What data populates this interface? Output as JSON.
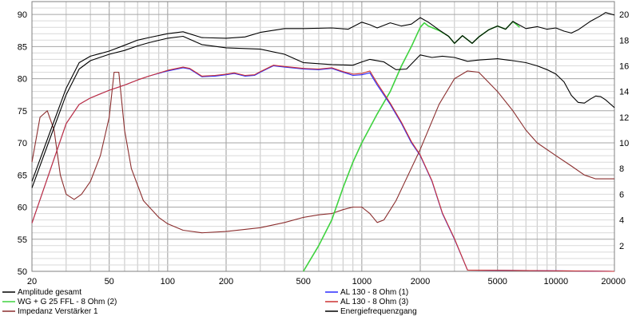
{
  "chart_data": {
    "type": "line",
    "title": "",
    "xlabel": "",
    "ylabel": "",
    "x_scale": "log",
    "xlim": [
      20,
      20000
    ],
    "ylim": [
      50,
      92
    ],
    "y2lim": [
      0,
      21
    ],
    "grid": true,
    "x_ticks": [
      "20",
      "50",
      "100",
      "200",
      "500",
      "1000",
      "2000",
      "5000",
      "10000",
      "20000"
    ],
    "y_ticks": [
      "50",
      "55",
      "60",
      "65",
      "70",
      "75",
      "80",
      "85",
      "90"
    ],
    "y2_ticks": [
      "2",
      "4",
      "6",
      "8",
      "10",
      "12",
      "14",
      "16",
      "18",
      "20"
    ],
    "legend_position": "bottom",
    "series": [
      {
        "name": "Amplitude gesamt",
        "color": "#000000",
        "axis": "left",
        "points": [
          [
            20,
            64
          ],
          [
            25,
            72
          ],
          [
            30,
            78.5
          ],
          [
            35,
            82.5
          ],
          [
            40,
            83.5
          ],
          [
            50,
            84.3
          ],
          [
            60,
            85.2
          ],
          [
            70,
            86
          ],
          [
            80,
            86.4
          ],
          [
            100,
            87
          ],
          [
            120,
            87.3
          ],
          [
            150,
            86.4
          ],
          [
            200,
            86.3
          ],
          [
            250,
            86.5
          ],
          [
            300,
            87.2
          ],
          [
            400,
            87.8
          ],
          [
            500,
            87.8
          ],
          [
            700,
            87.9
          ],
          [
            850,
            87.7
          ],
          [
            1000,
            88.8
          ],
          [
            1100,
            88.4
          ],
          [
            1200,
            87.9
          ],
          [
            1400,
            88.7
          ],
          [
            1600,
            88.2
          ],
          [
            1800,
            88.5
          ],
          [
            2000,
            89.5
          ],
          [
            2200,
            88.8
          ],
          [
            2500,
            87.6
          ],
          [
            2800,
            86.6
          ],
          [
            3000,
            85.5
          ],
          [
            3300,
            86.7
          ],
          [
            3700,
            85.5
          ],
          [
            4000,
            86.5
          ],
          [
            4500,
            87.6
          ],
          [
            5000,
            88.2
          ],
          [
            5500,
            87.7
          ],
          [
            6000,
            88.9
          ],
          [
            7000,
            87.8
          ],
          [
            8000,
            88.1
          ],
          [
            9000,
            87.7
          ],
          [
            10000,
            87.9
          ],
          [
            11000,
            87.4
          ],
          [
            12000,
            87.1
          ],
          [
            13000,
            87.6
          ],
          [
            15000,
            88.9
          ],
          [
            17000,
            89.8
          ],
          [
            18000,
            90.3
          ],
          [
            20000,
            89.9
          ]
        ]
      },
      {
        "name": "WG + G 25 FFL - 8 Ohm (2)",
        "color": "#3fd23f",
        "axis": "left",
        "points": [
          [
            500,
            50
          ],
          [
            600,
            54
          ],
          [
            700,
            58
          ],
          [
            800,
            63
          ],
          [
            900,
            67
          ],
          [
            1000,
            70
          ],
          [
            1200,
            74.5
          ],
          [
            1400,
            78
          ],
          [
            1600,
            82
          ],
          [
            1800,
            85
          ],
          [
            2000,
            88
          ],
          [
            2100,
            88.7
          ],
          [
            2200,
            88.2
          ],
          [
            2500,
            87.5
          ],
          [
            2800,
            86.6
          ],
          [
            3000,
            85.5
          ],
          [
            3300,
            86.7
          ],
          [
            3700,
            85.5
          ],
          [
            4000,
            86.5
          ],
          [
            4500,
            87.6
          ],
          [
            5000,
            88.2
          ],
          [
            5500,
            87.7
          ],
          [
            6000,
            88.9
          ],
          [
            6500,
            88
          ]
        ]
      },
      {
        "name": "Impedanz Verstärker 1",
        "color": "#8b2e2e",
        "axis": "right",
        "points": [
          [
            20,
            8.5
          ],
          [
            22,
            12
          ],
          [
            24,
            12.5
          ],
          [
            26,
            11
          ],
          [
            28,
            7.5
          ],
          [
            30,
            6
          ],
          [
            33,
            5.6
          ],
          [
            36,
            6
          ],
          [
            40,
            7
          ],
          [
            45,
            9
          ],
          [
            50,
            12
          ],
          [
            53,
            15.5
          ],
          [
            56,
            15.5
          ],
          [
            60,
            11
          ],
          [
            65,
            8
          ],
          [
            75,
            5.5
          ],
          [
            90,
            4.2
          ],
          [
            100,
            3.7
          ],
          [
            120,
            3.2
          ],
          [
            150,
            3
          ],
          [
            200,
            3.1
          ],
          [
            300,
            3.4
          ],
          [
            400,
            3.8
          ],
          [
            500,
            4.2
          ],
          [
            600,
            4.4
          ],
          [
            700,
            4.5
          ],
          [
            800,
            4.8
          ],
          [
            900,
            5
          ],
          [
            1000,
            5
          ],
          [
            1100,
            4.5
          ],
          [
            1200,
            3.8
          ],
          [
            1300,
            4
          ],
          [
            1500,
            5.5
          ],
          [
            2000,
            9.5
          ],
          [
            2500,
            13
          ],
          [
            3000,
            15
          ],
          [
            3500,
            15.6
          ],
          [
            4000,
            15.5
          ],
          [
            5000,
            14
          ],
          [
            6000,
            12.5
          ],
          [
            7000,
            11
          ],
          [
            8000,
            10
          ],
          [
            10000,
            9
          ],
          [
            12000,
            8.2
          ],
          [
            14000,
            7.5
          ],
          [
            16000,
            7.2
          ],
          [
            20000,
            7.2
          ]
        ]
      },
      {
        "name": "AL 130 - 8 Ohm (1)",
        "color": "#2a2aff",
        "axis": "left",
        "points": [
          [
            20,
            57.5
          ],
          [
            25,
            66
          ],
          [
            30,
            73
          ],
          [
            35,
            76
          ],
          [
            40,
            77
          ],
          [
            50,
            78.2
          ],
          [
            60,
            79
          ],
          [
            70,
            79.8
          ],
          [
            80,
            80.4
          ],
          [
            100,
            81.2
          ],
          [
            120,
            81.7
          ],
          [
            130,
            81.5
          ],
          [
            150,
            80.3
          ],
          [
            175,
            80.4
          ],
          [
            200,
            80.6
          ],
          [
            220,
            80.8
          ],
          [
            250,
            80.4
          ],
          [
            280,
            80.5
          ],
          [
            300,
            81
          ],
          [
            350,
            82
          ],
          [
            400,
            81.8
          ],
          [
            500,
            81.5
          ],
          [
            600,
            81.4
          ],
          [
            700,
            81.6
          ],
          [
            800,
            81
          ],
          [
            900,
            80.5
          ],
          [
            1000,
            80.6
          ],
          [
            1100,
            80.9
          ],
          [
            1200,
            79
          ],
          [
            1400,
            76
          ],
          [
            1600,
            73
          ],
          [
            1800,
            70
          ],
          [
            2000,
            68
          ],
          [
            2300,
            64
          ],
          [
            2600,
            59
          ],
          [
            3000,
            55
          ],
          [
            3500,
            50.2
          ],
          [
            20000,
            50
          ]
        ]
      },
      {
        "name": "AL 130 - 8 Ohm (3)",
        "color": "#cc3333",
        "axis": "left",
        "points": [
          [
            20,
            57.5
          ],
          [
            25,
            66
          ],
          [
            30,
            73
          ],
          [
            35,
            76
          ],
          [
            40,
            77
          ],
          [
            50,
            78.2
          ],
          [
            60,
            79
          ],
          [
            70,
            79.8
          ],
          [
            80,
            80.4
          ],
          [
            100,
            81.3
          ],
          [
            120,
            81.8
          ],
          [
            130,
            81.6
          ],
          [
            150,
            80.4
          ],
          [
            175,
            80.5
          ],
          [
            200,
            80.7
          ],
          [
            220,
            80.9
          ],
          [
            250,
            80.5
          ],
          [
            280,
            80.6
          ],
          [
            300,
            81.1
          ],
          [
            350,
            82.1
          ],
          [
            400,
            81.9
          ],
          [
            500,
            81.6
          ],
          [
            600,
            81.5
          ],
          [
            700,
            81.7
          ],
          [
            800,
            81.1
          ],
          [
            900,
            80.7
          ],
          [
            1000,
            80.8
          ],
          [
            1100,
            81.2
          ],
          [
            1200,
            79.3
          ],
          [
            1400,
            76.2
          ],
          [
            1600,
            73.2
          ],
          [
            1800,
            70.2
          ],
          [
            2000,
            68.1
          ],
          [
            2300,
            64.1
          ],
          [
            2600,
            59.1
          ],
          [
            3000,
            55.1
          ],
          [
            3500,
            50.2
          ],
          [
            20000,
            50
          ]
        ]
      },
      {
        "name": "Energiefrequenzgang",
        "color": "#000000",
        "axis": "left",
        "points": [
          [
            20,
            63
          ],
          [
            25,
            71
          ],
          [
            30,
            77.5
          ],
          [
            35,
            81.5
          ],
          [
            40,
            82.8
          ],
          [
            50,
            83.8
          ],
          [
            60,
            84.4
          ],
          [
            70,
            85.1
          ],
          [
            80,
            85.6
          ],
          [
            100,
            86.3
          ],
          [
            120,
            86.6
          ],
          [
            150,
            85.3
          ],
          [
            200,
            84.8
          ],
          [
            300,
            84.6
          ],
          [
            400,
            83.8
          ],
          [
            500,
            82.5
          ],
          [
            700,
            82.2
          ],
          [
            900,
            82.1
          ],
          [
            1000,
            82.6
          ],
          [
            1100,
            83
          ],
          [
            1300,
            82.6
          ],
          [
            1500,
            81.4
          ],
          [
            1700,
            81.5
          ],
          [
            2000,
            83.7
          ],
          [
            2300,
            83.3
          ],
          [
            2600,
            83.5
          ],
          [
            3000,
            83.3
          ],
          [
            3500,
            82.7
          ],
          [
            4000,
            82.9
          ],
          [
            5000,
            83.1
          ],
          [
            6000,
            82.8
          ],
          [
            7000,
            82.5
          ],
          [
            8000,
            82
          ],
          [
            9000,
            81.4
          ],
          [
            10000,
            80.7
          ],
          [
            11000,
            79.5
          ],
          [
            12000,
            77.4
          ],
          [
            13000,
            76.3
          ],
          [
            14000,
            76.2
          ],
          [
            15000,
            76.8
          ],
          [
            16000,
            77.3
          ],
          [
            17000,
            77.2
          ],
          [
            18000,
            76.7
          ],
          [
            20000,
            75.5
          ]
        ]
      }
    ]
  }
}
